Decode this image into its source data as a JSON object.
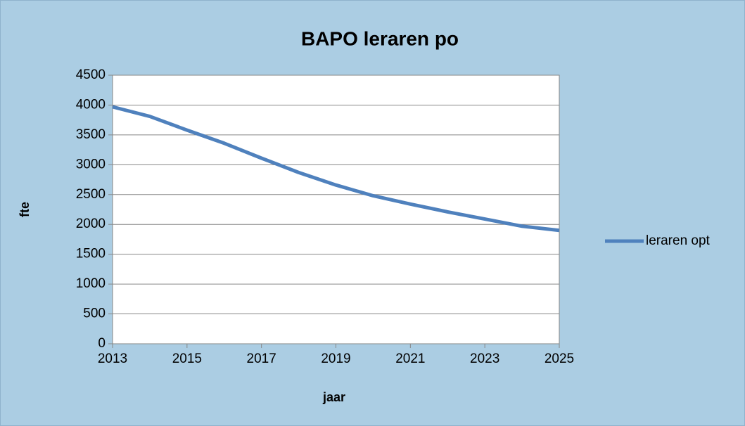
{
  "chart_data": {
    "type": "line",
    "title": "BAPO leraren po",
    "x": [
      2013,
      2014,
      2015,
      2016,
      2017,
      2018,
      2019,
      2020,
      2021,
      2022,
      2023,
      2024,
      2025
    ],
    "series": [
      {
        "name": "leraren opt",
        "color": "#4f81bd",
        "values": [
          3970,
          3810,
          3580,
          3360,
          3110,
          2870,
          2660,
          2480,
          2340,
          2210,
          2090,
          1970,
          1900
        ]
      }
    ],
    "xlabel": "jaar",
    "ylabel": "fte",
    "xlim": [
      2013,
      2025
    ],
    "xticks": [
      2013,
      2015,
      2017,
      2019,
      2021,
      2023,
      2025
    ],
    "ylim": [
      0,
      4500
    ],
    "yticks": [
      0,
      500,
      1000,
      1500,
      2000,
      2500,
      3000,
      3500,
      4000,
      4500
    ],
    "grid": true,
    "legend": "right"
  }
}
